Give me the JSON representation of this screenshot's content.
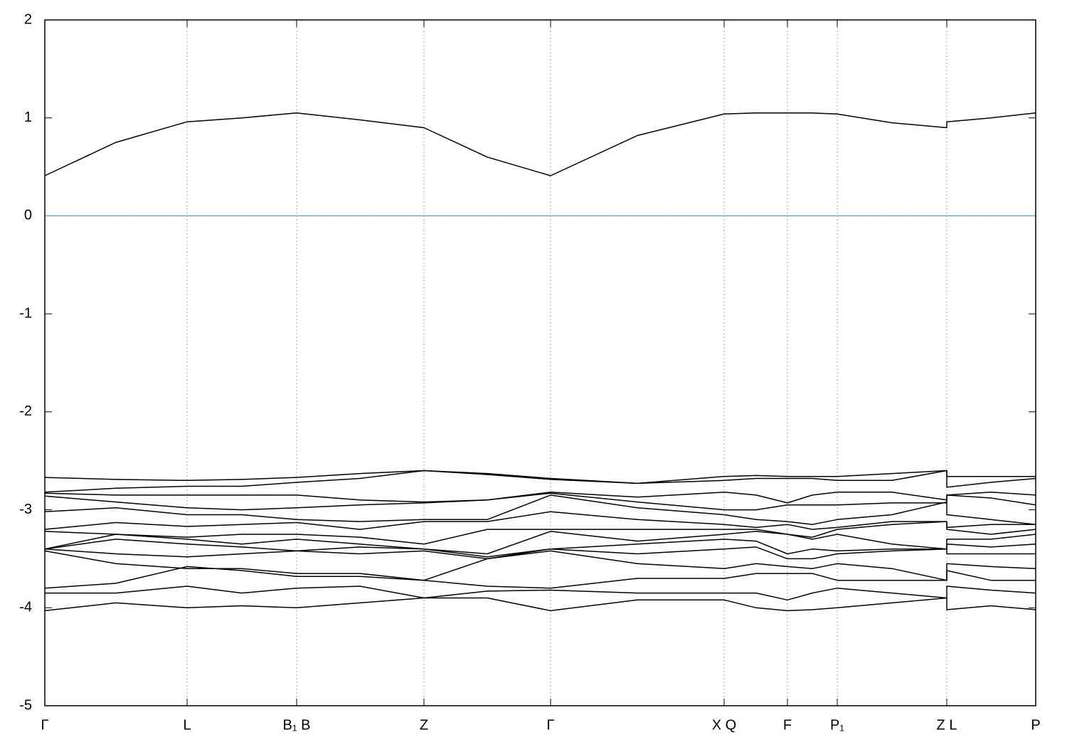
{
  "chart_data": {
    "type": "line",
    "xlim": [
      0,
      1393
    ],
    "ylim": [
      -5,
      2
    ],
    "yticks": [
      -5,
      -4,
      -3,
      -2,
      -1,
      0,
      1,
      2
    ],
    "xticks": [
      {
        "value": 0,
        "label": "Γ"
      },
      {
        "value": 200,
        "label": "L"
      },
      {
        "value": 354,
        "label": "B₁ B"
      },
      {
        "value": 533,
        "label": "Z"
      },
      {
        "value": 711,
        "label": "Γ"
      },
      {
        "value": 955,
        "label": "X Q"
      },
      {
        "value": 1044,
        "label": "F"
      },
      {
        "value": 1114,
        "label": "P₁"
      },
      {
        "value": 1268,
        "label": "Z L"
      },
      {
        "value": 1393,
        "label": "P"
      }
    ],
    "grid": true,
    "fermi_level": 0,
    "fermi_color": "#55b4cc",
    "x": [
      0,
      100,
      200,
      277,
      354,
      443,
      533,
      622,
      711,
      833,
      955,
      1000,
      1044,
      1079,
      1114,
      1191,
      1268,
      1268,
      1330,
      1393
    ],
    "series": [
      {
        "color": "#000000",
        "values": [
          0.41,
          0.75,
          0.96,
          1.0,
          1.05,
          0.98,
          0.9,
          0.6,
          0.41,
          0.82,
          1.04,
          1.05,
          1.05,
          1.05,
          1.04,
          0.95,
          0.9,
          0.96,
          1.0,
          1.05
        ]
      },
      {
        "color": "#000000",
        "values": [
          -2.67,
          -2.69,
          -2.7,
          -2.69,
          -2.67,
          -2.63,
          -2.6,
          -2.63,
          -2.68,
          -2.73,
          -2.66,
          -2.65,
          -2.66,
          -2.66,
          -2.66,
          -2.63,
          -2.6,
          -2.66,
          -2.66,
          -2.66
        ]
      },
      {
        "color": "#000000",
        "values": [
          -2.82,
          -2.78,
          -2.76,
          -2.76,
          -2.72,
          -2.68,
          -2.6,
          -2.64,
          -2.69,
          -2.73,
          -2.7,
          -2.68,
          -2.68,
          -2.68,
          -2.7,
          -2.7,
          -2.6,
          -2.77,
          -2.72,
          -2.68
        ]
      },
      {
        "color": "#000000",
        "values": [
          -2.83,
          -2.85,
          -2.85,
          -2.85,
          -2.85,
          -2.9,
          -2.92,
          -2.9,
          -2.82,
          -2.87,
          -2.82,
          -2.85,
          -2.93,
          -2.85,
          -2.82,
          -2.82,
          -2.9,
          -2.85,
          -2.82,
          -2.85
        ]
      },
      {
        "color": "#000000",
        "values": [
          -2.86,
          -2.92,
          -2.98,
          -3.0,
          -2.98,
          -2.95,
          -2.93,
          -2.9,
          -2.83,
          -2.92,
          -3.0,
          -3.0,
          -2.95,
          -2.95,
          -2.95,
          -2.93,
          -2.93,
          -2.85,
          -2.88,
          -2.95
        ]
      },
      {
        "color": "#000000",
        "values": [
          -3.02,
          -2.98,
          -3.05,
          -3.05,
          -3.1,
          -3.12,
          -3.1,
          -3.1,
          -2.85,
          -2.98,
          -3.05,
          -3.1,
          -3.12,
          -3.15,
          -3.1,
          -3.05,
          -2.92,
          -3.05,
          -3.1,
          -3.15
        ]
      },
      {
        "color": "#000000",
        "values": [
          -3.2,
          -3.13,
          -3.17,
          -3.15,
          -3.13,
          -3.2,
          -3.12,
          -3.12,
          -3.02,
          -3.1,
          -3.15,
          -3.18,
          -3.15,
          -3.2,
          -3.18,
          -3.12,
          -3.12,
          -3.18,
          -3.15,
          -3.15
        ]
      },
      {
        "color": "#000000",
        "values": [
          -3.22,
          -3.25,
          -3.28,
          -3.25,
          -3.25,
          -3.28,
          -3.35,
          -3.2,
          -3.2,
          -3.2,
          -3.2,
          -3.2,
          -3.25,
          -3.28,
          -3.2,
          -3.15,
          -3.12,
          -3.2,
          -3.25,
          -3.2
        ]
      },
      {
        "color": "#000000",
        "values": [
          -3.4,
          -3.25,
          -3.3,
          -3.35,
          -3.3,
          -3.35,
          -3.4,
          -3.45,
          -3.22,
          -3.32,
          -3.25,
          -3.22,
          -3.25,
          -3.3,
          -3.25,
          -3.35,
          -3.4,
          -3.3,
          -3.3,
          -3.25
        ]
      },
      {
        "color": "#000000",
        "values": [
          -3.4,
          -3.3,
          -3.35,
          -3.38,
          -3.42,
          -3.38,
          -3.4,
          -3.48,
          -3.4,
          -3.35,
          -3.3,
          -3.32,
          -3.45,
          -3.4,
          -3.42,
          -3.4,
          -3.4,
          -3.35,
          -3.38,
          -3.35
        ]
      },
      {
        "color": "#000000",
        "values": [
          -3.4,
          -3.45,
          -3.48,
          -3.45,
          -3.42,
          -3.45,
          -3.42,
          -3.5,
          -3.4,
          -3.45,
          -3.4,
          -3.38,
          -3.5,
          -3.5,
          -3.45,
          -3.42,
          -3.4,
          -3.45,
          -3.45,
          -3.45
        ]
      },
      {
        "color": "#000000",
        "values": [
          -3.42,
          -3.55,
          -3.6,
          -3.6,
          -3.65,
          -3.65,
          -3.72,
          -3.5,
          -3.42,
          -3.55,
          -3.6,
          -3.55,
          -3.58,
          -3.6,
          -3.55,
          -3.6,
          -3.72,
          -3.55,
          -3.58,
          -3.6
        ]
      },
      {
        "color": "#000000",
        "values": [
          -3.8,
          -3.75,
          -3.58,
          -3.62,
          -3.68,
          -3.68,
          -3.72,
          -3.78,
          -3.8,
          -3.7,
          -3.7,
          -3.65,
          -3.65,
          -3.65,
          -3.72,
          -3.72,
          -3.72,
          -3.62,
          -3.72,
          -3.72
        ]
      },
      {
        "color": "#000000",
        "values": [
          -3.85,
          -3.85,
          -3.78,
          -3.85,
          -3.8,
          -3.78,
          -3.9,
          -3.83,
          -3.82,
          -3.85,
          -3.85,
          -3.85,
          -3.92,
          -3.85,
          -3.8,
          -3.85,
          -3.9,
          -3.78,
          -3.82,
          -3.85
        ]
      },
      {
        "color": "#000000",
        "values": [
          -4.03,
          -3.95,
          -4.0,
          -3.98,
          -4.0,
          -3.95,
          -3.9,
          -3.9,
          -4.03,
          -3.92,
          -3.92,
          -4.0,
          -4.03,
          -4.02,
          -4.0,
          -3.95,
          -3.9,
          -4.02,
          -3.98,
          -4.02
        ]
      }
    ]
  }
}
